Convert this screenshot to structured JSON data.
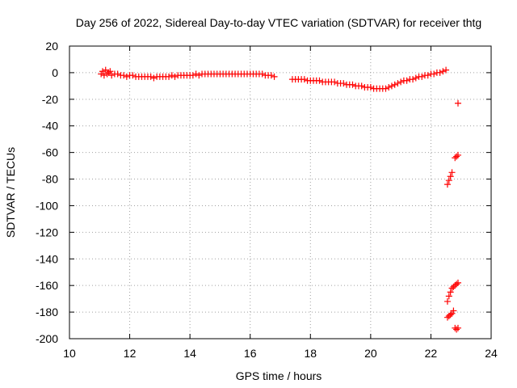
{
  "chart_data": {
    "type": "scatter",
    "title": "Day 256 of 2022, Sidereal Day-to-day VTEC variation (SDTVAR) for receiver thtg",
    "xlabel": "GPS time / hours",
    "ylabel": "SDTVAR / TECUs",
    "xlim": [
      10,
      24
    ],
    "ylim": [
      -200,
      20
    ],
    "xticks": [
      "10",
      "12",
      "14",
      "16",
      "18",
      "20",
      "22",
      "24"
    ],
    "yticks": [
      "20",
      "0",
      "-20",
      "-40",
      "-60",
      "-80",
      "-100",
      "-120",
      "-140",
      "-160",
      "-180",
      "-200"
    ],
    "grid": true,
    "marker": "plus",
    "color": "#ff0000",
    "series": [
      {
        "x": [
          11.05,
          11.1,
          11.15,
          11.2,
          11.25,
          11.3,
          11.35,
          11.4,
          11.5,
          11.6,
          11.7,
          11.8,
          11.9,
          12.0,
          12.1,
          12.2,
          12.3,
          12.4,
          12.5,
          12.6,
          12.7,
          12.8,
          12.9,
          13.0,
          13.1,
          13.2,
          13.3,
          13.4,
          13.5,
          13.6,
          13.7,
          13.8,
          13.9,
          14.0,
          14.1,
          14.2,
          14.3,
          14.4,
          14.5,
          14.6,
          14.7,
          14.8,
          14.9,
          15.0,
          15.1,
          15.2,
          15.3,
          15.4,
          15.5,
          15.6,
          15.7,
          15.8,
          15.9,
          16.0,
          16.1,
          16.2,
          16.3,
          16.4,
          16.5,
          16.6,
          16.7,
          16.8
        ],
        "y": [
          -1,
          1,
          -2,
          2,
          -1,
          0,
          1,
          -2,
          -1,
          -1,
          -2,
          -2,
          -3,
          -2,
          -2,
          -3,
          -3,
          -3,
          -3,
          -3,
          -3,
          -4,
          -3,
          -3,
          -3,
          -3,
          -3,
          -2,
          -3,
          -2,
          -2,
          -2,
          -2,
          -2,
          -2,
          -1,
          -2,
          -1,
          -1,
          -1,
          -1,
          -1,
          -1,
          -1,
          -1,
          -1,
          -1,
          -1,
          -1,
          -1,
          -1,
          -1,
          -1,
          -1,
          -1,
          -1,
          -1,
          -1,
          -2,
          -2,
          -2,
          -3
        ]
      },
      {
        "x": [
          17.4,
          17.5,
          17.6,
          17.7,
          17.8,
          17.9,
          18.0,
          18.1,
          18.2,
          18.3,
          18.4,
          18.5,
          18.6,
          18.7,
          18.8,
          18.9,
          19.0,
          19.1,
          19.2,
          19.3,
          19.4,
          19.5,
          19.6,
          19.7,
          19.8,
          19.9,
          20.0,
          20.1,
          20.2,
          20.3,
          20.4,
          20.5,
          20.6,
          20.7,
          20.8,
          20.9,
          21.0,
          21.1,
          21.2,
          21.3,
          21.4,
          21.5,
          21.6,
          21.7,
          21.8,
          21.9,
          22.0,
          22.1,
          22.2,
          22.3,
          22.4,
          22.5
        ],
        "y": [
          -5,
          -5,
          -5,
          -5,
          -5,
          -6,
          -6,
          -6,
          -6,
          -6,
          -7,
          -7,
          -7,
          -7,
          -7,
          -8,
          -8,
          -8,
          -9,
          -9,
          -9,
          -10,
          -10,
          -10,
          -11,
          -11,
          -11,
          -12,
          -12,
          -12,
          -12,
          -12,
          -11,
          -10,
          -9,
          -8,
          -7,
          -6,
          -6,
          -5,
          -5,
          -4,
          -3,
          -3,
          -2,
          -2,
          -1,
          -1,
          0,
          0,
          1,
          2
        ]
      },
      {
        "x": [
          22.55,
          22.6,
          22.65,
          22.7
        ],
        "y": [
          -84,
          -81,
          -78,
          -75
        ]
      },
      {
        "x": [
          22.8,
          22.85,
          22.9
        ],
        "y": [
          -64,
          -63,
          -62
        ]
      },
      {
        "x": [
          22.9
        ],
        "y": [
          -23
        ]
      },
      {
        "x": [
          22.55,
          22.6,
          22.65,
          22.7,
          22.75,
          22.8,
          22.85,
          22.9
        ],
        "y": [
          -172,
          -168,
          -165,
          -162,
          -161,
          -160,
          -159,
          -158
        ]
      },
      {
        "x": [
          22.55,
          22.6,
          22.65,
          22.7,
          22.75
        ],
        "y": [
          -184,
          -183,
          -182,
          -181,
          -179
        ]
      },
      {
        "x": [
          22.8,
          22.85,
          22.9
        ],
        "y": [
          -192,
          -193,
          -192
        ]
      }
    ]
  }
}
